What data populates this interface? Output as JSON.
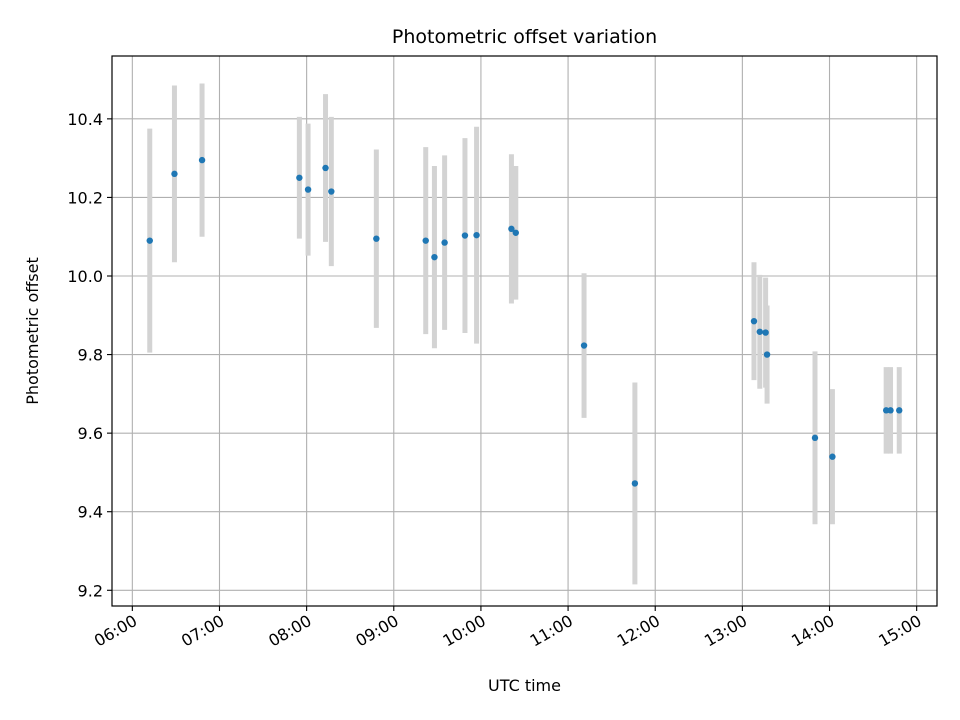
{
  "chart_data": {
    "type": "scatter",
    "title": "Photometric offset variation",
    "xlabel": "UTC time",
    "ylabel": "Photometric offset",
    "x_ticks": [
      "06:00",
      "07:00",
      "08:00",
      "09:00",
      "10:00",
      "11:00",
      "12:00",
      "13:00",
      "14:00",
      "15:00"
    ],
    "y_ticks": [
      9.2,
      9.4,
      9.6,
      9.8,
      10.0,
      10.2,
      10.4
    ],
    "ylim": [
      9.16,
      10.56
    ],
    "xlim": [
      "05:46",
      "15:14"
    ],
    "grid": true,
    "colors": {
      "marker": "#1f77b4",
      "errorbar": "#d3d3d3",
      "grid": "#b0b0b0"
    },
    "points": [
      {
        "time": "06:12",
        "y": 10.09,
        "err": 0.285
      },
      {
        "time": "06:29",
        "y": 10.26,
        "err": 0.225
      },
      {
        "time": "06:48",
        "y": 10.295,
        "err": 0.195
      },
      {
        "time": "07:55",
        "y": 10.25,
        "err": 0.155
      },
      {
        "time": "08:01",
        "y": 10.22,
        "err": 0.168
      },
      {
        "time": "08:13",
        "y": 10.275,
        "err": 0.188
      },
      {
        "time": "08:17",
        "y": 10.215,
        "err": 0.19
      },
      {
        "time": "08:48",
        "y": 10.095,
        "err": 0.227
      },
      {
        "time": "09:22",
        "y": 10.09,
        "err": 0.238
      },
      {
        "time": "09:28",
        "y": 10.048,
        "err": 0.232
      },
      {
        "time": "09:35",
        "y": 10.085,
        "err": 0.222
      },
      {
        "time": "09:49",
        "y": 10.103,
        "err": 0.248
      },
      {
        "time": "09:57",
        "y": 10.104,
        "err": 0.276
      },
      {
        "time": "10:21",
        "y": 10.12,
        "err": 0.19
      },
      {
        "time": "10:24",
        "y": 10.11,
        "err": 0.17
      },
      {
        "time": "11:11",
        "y": 9.823,
        "err": 0.184
      },
      {
        "time": "11:46",
        "y": 9.472,
        "err": 0.257
      },
      {
        "time": "13:08",
        "y": 9.885,
        "err": 0.15
      },
      {
        "time": "13:12",
        "y": 9.858,
        "err": 0.145
      },
      {
        "time": "13:16",
        "y": 9.856,
        "err": 0.14
      },
      {
        "time": "13:17",
        "y": 9.8,
        "err": 0.125
      },
      {
        "time": "13:50",
        "y": 9.588,
        "err": 0.22
      },
      {
        "time": "14:02",
        "y": 9.54,
        "err": 0.172
      },
      {
        "time": "14:39",
        "y": 9.658,
        "err": 0.11
      },
      {
        "time": "14:42",
        "y": 9.658,
        "err": 0.11
      },
      {
        "time": "14:48",
        "y": 9.658,
        "err": 0.11
      }
    ]
  }
}
